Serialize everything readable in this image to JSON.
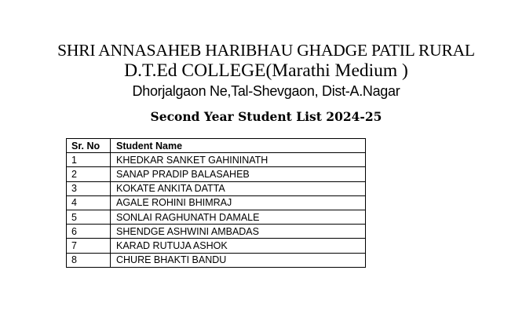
{
  "page": {
    "title_line1": "SHRI ANNASAHEB HARIBHAU GHADGE PATIL RURAL",
    "title_line2": "D.T.Ed COLLEGE(Marathi Medium )",
    "address": "Dhorjalgaon Ne,Tal-Shevgaon, Dist-A.Nagar",
    "list_heading": "Second Year Student List 2024-25"
  },
  "table": {
    "columns": [
      "Sr. No",
      "Student Name"
    ],
    "rows": [
      {
        "sr_no": "1",
        "name": "KHEDKAR SANKET GAHININATH"
      },
      {
        "sr_no": "2",
        "name": "SANAP PRADIP BALASAHEB"
      },
      {
        "sr_no": "3",
        "name": "KOKATE ANKITA DATTA"
      },
      {
        "sr_no": "4",
        "name": "AGALE ROHINI BHIMRAJ"
      },
      {
        "sr_no": "5",
        "name": "SONLAI RAGHUNATH DAMALE"
      },
      {
        "sr_no": "6",
        "name": "SHENDGE ASHWINI AMBADAS"
      },
      {
        "sr_no": "7",
        "name": "KARAD RUTUJA ASHOK"
      },
      {
        "sr_no": "8",
        "name": "CHURE BHAKTI BANDU"
      }
    ]
  },
  "colors": {
    "background": "#ffffff",
    "text": "#000000",
    "table_border": "#000000"
  }
}
